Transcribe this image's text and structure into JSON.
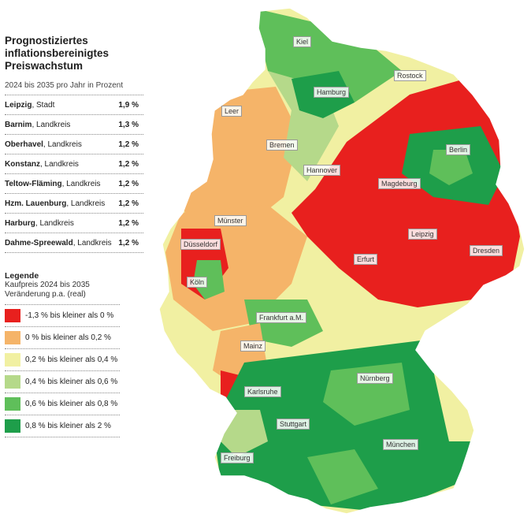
{
  "title_line1": "Prognostiziertes",
  "title_line2": "inflationsbereinigtes",
  "title_line3": "Preiswachstum",
  "subtitle": "2024 bis 2035 pro Jahr in Prozent",
  "ranking": [
    {
      "place": "Leipzig",
      "type": ", Stadt",
      "value": "1,9 %"
    },
    {
      "place": "Barnim",
      "type": ", Landkreis",
      "value": "1,3 %"
    },
    {
      "place": "Oberhavel",
      "type": ", Landkreis",
      "value": "1,2 %"
    },
    {
      "place": "Konstanz",
      "type": ", Landkreis",
      "value": "1,2 %"
    },
    {
      "place": "Teltow-Fläming",
      "type": ", Landkreis",
      "value": "1,2 %"
    },
    {
      "place": "Hzm. Lauenburg",
      "type": ", Landkreis",
      "value": "1,2 %"
    },
    {
      "place": "Harburg",
      "type": ", Landkreis",
      "value": "1,2 %"
    },
    {
      "place": "Dahme-Spreewald",
      "type": ", Landkreis",
      "value": "1,2 %"
    }
  ],
  "legend": {
    "title": "Legende",
    "sub1": "Kaufpreis 2024 bis 2035",
    "sub2": "Veränderung p.a. (real)",
    "items": [
      {
        "label": "-1,3 % bis kleiner als 0 %",
        "color": "#e8201e"
      },
      {
        "label": "0 % bis kleiner als 0,2 %",
        "color": "#f5b469"
      },
      {
        "label": "0,2 % bis kleiner als 0,4 %",
        "color": "#f1f0a2"
      },
      {
        "label": "0,4 % bis kleiner als 0,6 %",
        "color": "#b5d98a"
      },
      {
        "label": "0,6 % bis kleiner als 0,8 %",
        "color": "#5fbf5a"
      },
      {
        "label": "0,8 % bis kleiner als 2 %",
        "color": "#1e9e4a"
      }
    ]
  },
  "cities": [
    {
      "name": "Kiel"
    },
    {
      "name": "Rostock"
    },
    {
      "name": "Hamburg"
    },
    {
      "name": "Leer"
    },
    {
      "name": "Bremen"
    },
    {
      "name": "Berlin"
    },
    {
      "name": "Hannover"
    },
    {
      "name": "Magdeburg"
    },
    {
      "name": "Münster"
    },
    {
      "name": "Leipzig"
    },
    {
      "name": "Düsseldorf"
    },
    {
      "name": "Dresden"
    },
    {
      "name": "Erfurt"
    },
    {
      "name": "Köln"
    },
    {
      "name": "Frankfurt a.M."
    },
    {
      "name": "Mainz"
    },
    {
      "name": "Nürnberg"
    },
    {
      "name": "Karlsruhe"
    },
    {
      "name": "Stuttgart"
    },
    {
      "name": "München"
    },
    {
      "name": "Freiburg"
    }
  ]
}
